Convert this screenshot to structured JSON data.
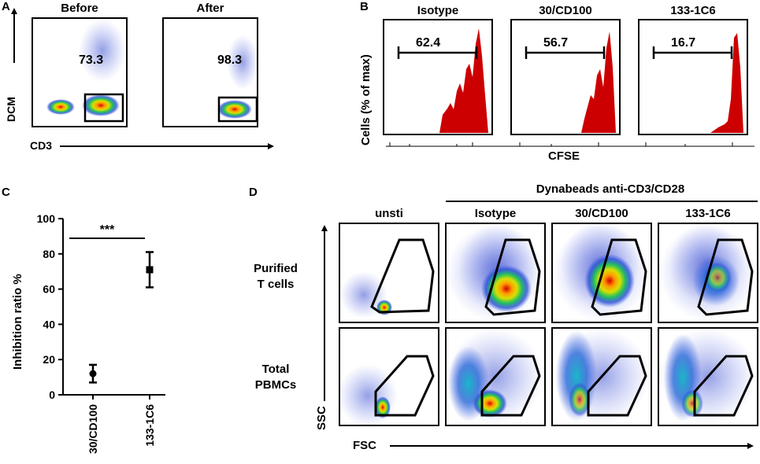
{
  "panel_a": {
    "letter": "A",
    "plots": [
      {
        "title": "Before",
        "gate_value": "73.3"
      },
      {
        "title": "After",
        "gate_value": "98.3"
      }
    ],
    "y_axis_label": "DCM",
    "x_axis_label": "CD3"
  },
  "panel_b": {
    "letter": "B",
    "plots": [
      {
        "title": "Isotype",
        "gate_value": "62.4"
      },
      {
        "title": "30/CD100",
        "gate_value": "56.7"
      },
      {
        "title": "133-1C6",
        "gate_value": "16.7"
      }
    ],
    "y_axis_label": "Cells (% of max)",
    "x_axis_label": "CFSE",
    "fill_color": "#cc0000"
  },
  "panel_c": {
    "letter": "C",
    "significance": "***",
    "chart_data": {
      "type": "scatter",
      "title": "",
      "xlabel": "",
      "ylabel": "Inhibition ratio %",
      "categories": [
        "30/CD100",
        "133-1C6"
      ],
      "values": [
        12,
        71
      ],
      "errors": [
        5,
        10
      ],
      "ylim": [
        0,
        100
      ],
      "yticks": [
        "0",
        "20",
        "40",
        "60",
        "80",
        "100"
      ]
    }
  },
  "panel_d": {
    "letter": "D",
    "stim_label": "Dynabeads anti-CD3/CD28",
    "columns": [
      "unsti",
      "Isotype",
      "30/CD100",
      "133-1C6"
    ],
    "row_label_1a": "Purified",
    "row_label_1b": "T cells",
    "row_label_2a": "Total",
    "row_label_2b": "PBMCs",
    "y_axis_label": "SSC",
    "x_axis_label": "FSC"
  }
}
